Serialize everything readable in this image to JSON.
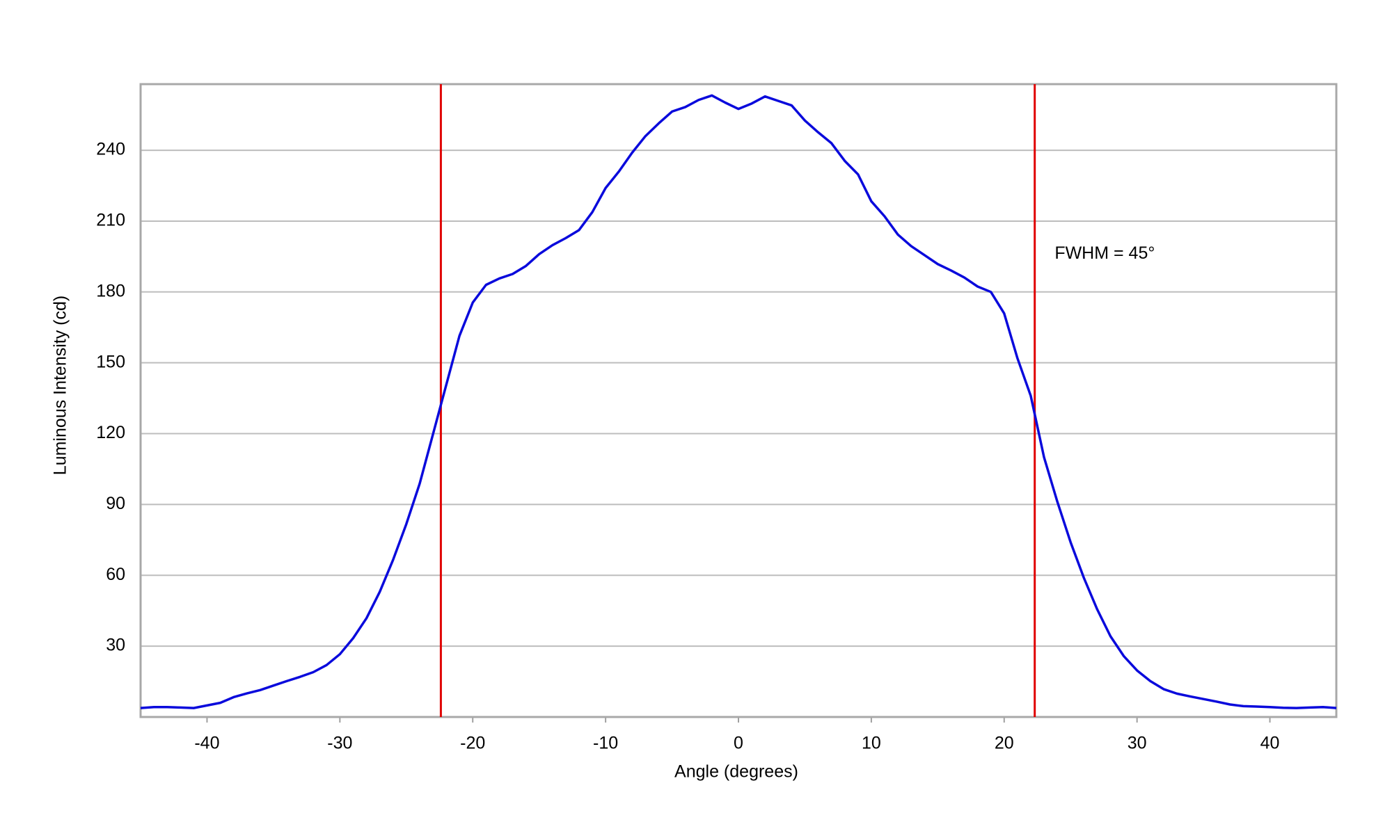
{
  "chart_data": {
    "type": "line",
    "xlabel": "Angle (degrees)",
    "ylabel": "Luminous Intensity (cd)",
    "xlim": [
      -45,
      45
    ],
    "ylim": [
      0,
      268
    ],
    "xticks": [
      -40,
      -30,
      -20,
      -10,
      0,
      10,
      20,
      30,
      40
    ],
    "yticks": [
      30,
      60,
      90,
      120,
      150,
      180,
      210,
      240
    ],
    "grid": true,
    "color": "#0a0adc",
    "x": [
      -45,
      -44,
      -43,
      -42,
      -41,
      -40,
      -39,
      -38,
      -37,
      -36,
      -35,
      -34,
      -33,
      -32,
      -31,
      -30,
      -29,
      -28,
      -27,
      -26,
      -25,
      -24,
      -23,
      -22,
      -21,
      -20,
      -19,
      -18,
      -17,
      -16,
      -15,
      -14,
      -13,
      -12,
      -11,
      -10,
      -9,
      -8,
      -7,
      -6,
      -5,
      -4,
      -3,
      -2,
      -1,
      0,
      1,
      2,
      3,
      4,
      5,
      6,
      7,
      8,
      9,
      10,
      11,
      12,
      13,
      14,
      15,
      16,
      17,
      18,
      19,
      20,
      21,
      22,
      23,
      24,
      25,
      26,
      27,
      28,
      29,
      30,
      31,
      32,
      33,
      34,
      35,
      36,
      37,
      38,
      39,
      40,
      41,
      42,
      43,
      44,
      45
    ],
    "values": [
      3.8,
      4.2,
      4.2,
      4.0,
      3.8,
      4.9,
      6.0,
      8.4,
      10.0,
      11.4,
      13.3,
      15.2,
      17.0,
      19.0,
      22.0,
      26.6,
      33.4,
      41.8,
      53.0,
      66.5,
      81.7,
      98.7,
      119.6,
      140.5,
      161.4,
      175.5,
      183.0,
      185.7,
      187.6,
      191.0,
      196.0,
      199.8,
      202.8,
      206.2,
      213.8,
      224.0,
      231.0,
      239.0,
      246.0,
      251.4,
      256.4,
      258.3,
      261.3,
      263.2,
      260.2,
      257.5,
      259.8,
      262.8,
      260.9,
      259.0,
      252.6,
      247.6,
      243.0,
      235.5,
      229.8,
      218.4,
      212.0,
      204.3,
      199.4,
      195.6,
      191.8,
      189.1,
      186.1,
      182.3,
      180.0,
      170.9,
      151.9,
      136.0,
      110.0,
      91.2,
      74.0,
      58.9,
      45.6,
      34.2,
      25.8,
      19.7,
      15.2,
      11.8,
      9.9,
      8.7,
      7.6,
      6.5,
      5.3,
      4.6,
      4.4,
      4.2,
      3.9,
      3.8,
      4.0,
      4.2,
      3.8
    ],
    "vlines": [
      -22.4,
      22.3
    ],
    "vline_color": "#e00000",
    "annotation": {
      "text": "FWHM = 45°",
      "x": 23.8,
      "y": 196
    }
  }
}
